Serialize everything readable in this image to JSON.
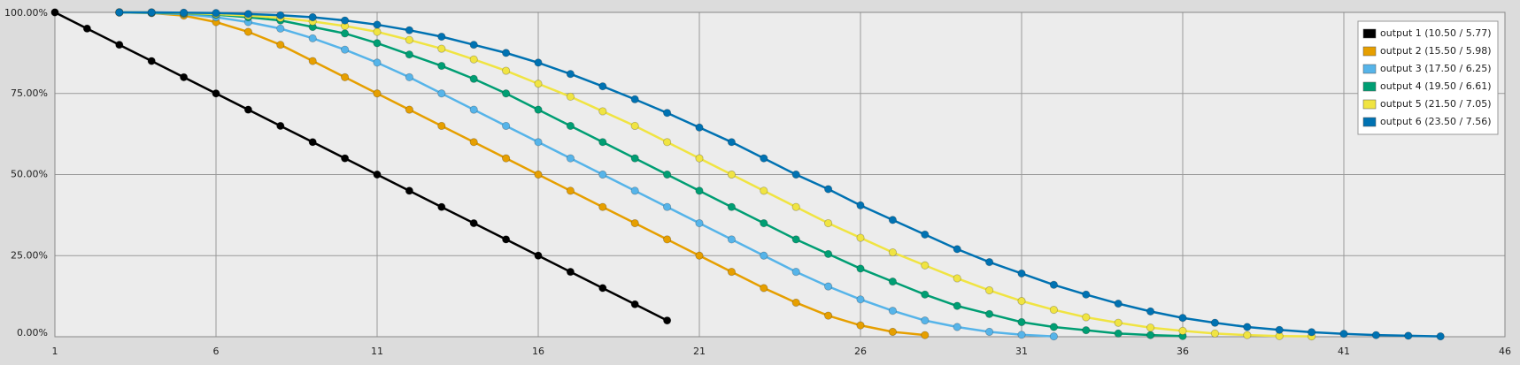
{
  "chart_data": {
    "type": "line",
    "xlim": [
      1,
      46
    ],
    "xticks": [
      1,
      6,
      11,
      16,
      21,
      26,
      31,
      36,
      41,
      46
    ],
    "ylim": [
      0,
      100
    ],
    "yticks": [
      {
        "value": 0,
        "label": "0.00%"
      },
      {
        "value": 25,
        "label": "25.00%"
      },
      {
        "value": 50,
        "label": "50.00%"
      },
      {
        "value": 75,
        "label": "75.00%"
      },
      {
        "value": 100,
        "label": "100.00%"
      }
    ],
    "grid": true,
    "legend": "top-right",
    "series": [
      {
        "name": "output 1 (10.50 / 5.77)",
        "color": "#000000",
        "x": [
          1,
          2,
          3,
          4,
          5,
          6,
          7,
          8,
          9,
          10,
          11,
          12,
          13,
          14,
          15,
          16,
          17,
          18,
          19,
          20
        ],
        "values": [
          100,
          95,
          90,
          85,
          80,
          75,
          70,
          65,
          60,
          55,
          50,
          45,
          40,
          35,
          30,
          25,
          20,
          15,
          10,
          5
        ]
      },
      {
        "name": "output 2 (15.50 / 5.98)",
        "color": "#e69f00",
        "x": [
          3,
          4,
          5,
          6,
          7,
          8,
          9,
          10,
          11,
          12,
          13,
          14,
          15,
          16,
          17,
          18,
          19,
          20,
          21,
          22,
          23,
          24,
          25,
          26,
          27,
          28
        ],
        "values": [
          100,
          99.8,
          99,
          97,
          94,
          90,
          85,
          80,
          75,
          70,
          65,
          60,
          55,
          50,
          45,
          40,
          35,
          30,
          25,
          20,
          15,
          10.5,
          6.5,
          3.5,
          1.5,
          0.5
        ]
      },
      {
        "name": "output 3 (17.50 / 6.25)",
        "color": "#56b4e9",
        "x": [
          3,
          4,
          5,
          6,
          7,
          8,
          9,
          10,
          11,
          12,
          13,
          14,
          15,
          16,
          17,
          18,
          19,
          20,
          21,
          22,
          23,
          24,
          25,
          26,
          27,
          28,
          29,
          30,
          31,
          32
        ],
        "values": [
          100,
          99.8,
          99.5,
          98.5,
          97,
          95,
          92,
          88.5,
          84.5,
          80,
          75,
          70,
          65,
          60,
          55,
          50,
          45,
          40,
          35,
          30,
          25,
          20,
          15.5,
          11.5,
          8,
          5,
          3,
          1.5,
          0.6,
          0.1
        ]
      },
      {
        "name": "output 4 (19.50 / 6.61)",
        "color": "#009e73",
        "x": [
          3,
          4,
          5,
          6,
          7,
          8,
          9,
          10,
          11,
          12,
          13,
          14,
          15,
          16,
          17,
          18,
          19,
          20,
          21,
          22,
          23,
          24,
          25,
          26,
          27,
          28,
          29,
          30,
          31,
          32,
          33,
          34,
          35,
          36
        ],
        "values": [
          100,
          99.9,
          99.7,
          99.3,
          98.5,
          97.5,
          95.5,
          93.5,
          90.5,
          87,
          83.5,
          79.5,
          75,
          70,
          65,
          60,
          55,
          50,
          45,
          40,
          35,
          30,
          25.5,
          21,
          17,
          13,
          9.5,
          7,
          4.5,
          3,
          2,
          1,
          0.5,
          0.2
        ]
      },
      {
        "name": "output 5 (21.50 / 7.05)",
        "color": "#f0e442",
        "x": [
          3,
          4,
          5,
          6,
          7,
          8,
          9,
          10,
          11,
          12,
          13,
          14,
          15,
          16,
          17,
          18,
          19,
          20,
          21,
          22,
          23,
          24,
          25,
          26,
          27,
          28,
          29,
          30,
          31,
          32,
          33,
          34,
          35,
          36,
          37,
          38,
          39,
          40
        ],
        "values": [
          100,
          100,
          99.8,
          99.5,
          99,
          98.3,
          97.2,
          95.8,
          94,
          91.5,
          88.8,
          85.5,
          82,
          78,
          74,
          69.5,
          65,
          60,
          55,
          50,
          45,
          40,
          35,
          30.5,
          26,
          22,
          18,
          14.3,
          11,
          8.3,
          6,
          4.3,
          2.8,
          1.8,
          1,
          0.5,
          0.2,
          0.1
        ]
      },
      {
        "name": "output 6 (23.50 / 7.56)",
        "color": "#0072b2",
        "x": [
          3,
          4,
          5,
          6,
          7,
          8,
          9,
          10,
          11,
          12,
          13,
          14,
          15,
          16,
          17,
          18,
          19,
          20,
          21,
          22,
          23,
          24,
          25,
          26,
          27,
          28,
          29,
          30,
          31,
          32,
          33,
          34,
          35,
          36,
          37,
          38,
          39,
          40,
          41,
          42,
          43,
          44
        ],
        "values": [
          100,
          100,
          99.9,
          99.8,
          99.5,
          99.1,
          98.5,
          97.5,
          96.2,
          94.5,
          92.5,
          90,
          87.5,
          84.5,
          81,
          77.2,
          73.2,
          69,
          64.5,
          60,
          55,
          50,
          45.5,
          40.5,
          36,
          31.5,
          27,
          23,
          19.5,
          16,
          13,
          10.2,
          7.8,
          5.8,
          4.3,
          3,
          2.1,
          1.4,
          0.9,
          0.5,
          0.3,
          0.1
        ]
      }
    ]
  }
}
